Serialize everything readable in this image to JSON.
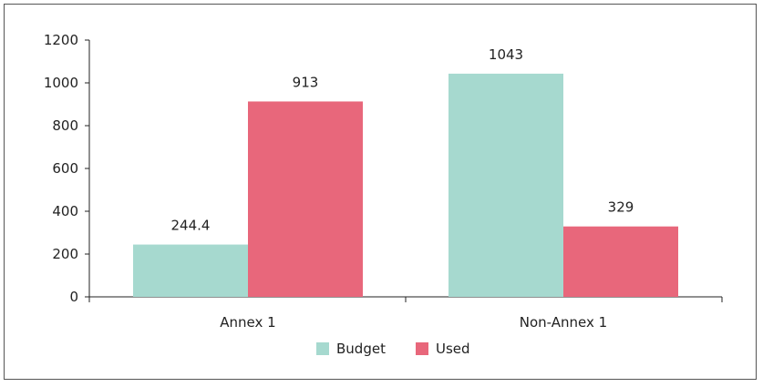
{
  "chart_data": {
    "type": "bar",
    "title": "",
    "xlabel": "",
    "ylabel": "",
    "categories": [
      "Annex 1",
      "Non-Annex 1"
    ],
    "series": [
      {
        "name": "Budget",
        "values": [
          244.4,
          1043
        ],
        "labels": [
          "244.4",
          "1043"
        ],
        "color": "#a6d9cf"
      },
      {
        "name": "Used",
        "values": [
          913,
          329
        ],
        "labels": [
          "913",
          "329"
        ],
        "color": "#e8677b"
      }
    ],
    "ylim": [
      0,
      1200
    ],
    "yticks": [
      0,
      200,
      400,
      600,
      800,
      1000,
      1200
    ],
    "grid": false,
    "legend": "bottom-center"
  }
}
